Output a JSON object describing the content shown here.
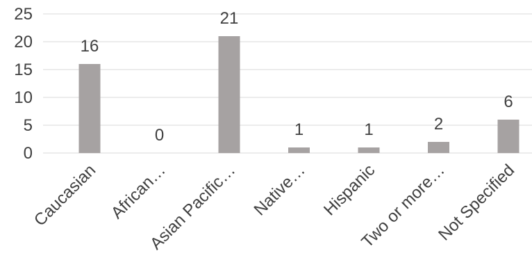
{
  "chart_data": {
    "type": "bar",
    "categories": [
      "Caucasian",
      "African…",
      "Asian Pacific…",
      "Native…",
      "Hispanic",
      "Two or more…",
      "Not Specified"
    ],
    "values": [
      16,
      0,
      21,
      1,
      1,
      2,
      6
    ],
    "data_labels": [
      "16",
      "0",
      "21",
      "1",
      "1",
      "2",
      "6"
    ],
    "ylim": [
      0,
      25
    ],
    "yticks": [
      "0",
      "5",
      "10",
      "15",
      "20",
      "25"
    ],
    "ytick_values": [
      0,
      5,
      10,
      15,
      20,
      25
    ],
    "grid": true,
    "legend": "none",
    "bar_color": "#a6a2a2",
    "title": "",
    "xlabel": "",
    "ylabel": ""
  }
}
